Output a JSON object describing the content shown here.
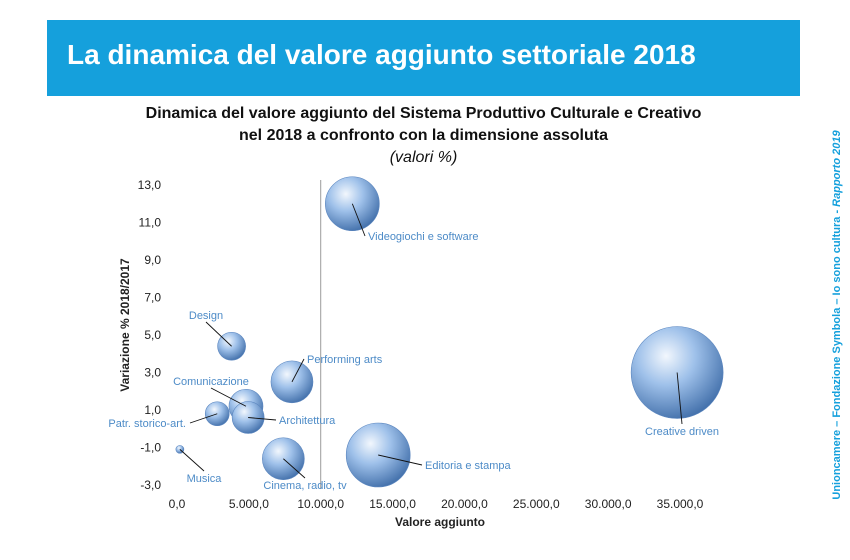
{
  "header": {
    "title": "La dinamica del valore aggiunto settoriale 2018"
  },
  "side_note": {
    "text_a": "Unioncamere – Fondazione Symbola – Io sono cultura - ",
    "text_b": "Rapporto 2019"
  },
  "colors": {
    "banner": "#15a0dc",
    "bubble_light": "#e6f0fb",
    "bubble_mid": "#8cb4e3",
    "bubble_dark": "#3f6fa8",
    "label": "#4d8bc7"
  },
  "chart_data": {
    "type": "bubble",
    "title_line1": "Dinamica del valore aggiunto del Sistema Produttivo Culturale e Creativo",
    "title_line2": "nel 2018 a confronto con la dimensione assoluta",
    "subtitle": "(valori %)",
    "xlabel": "Valore aggiunto",
    "ylabel": "Variazione % 2018/2017",
    "xlim": [
      0,
      35000
    ],
    "ylim": [
      -3,
      13
    ],
    "x_ticks": [
      "0,0",
      "5.000,0",
      "10.000,0",
      "15.000,0",
      "20.000,0",
      "25.000,0",
      "30.000,0",
      "35.000,0"
    ],
    "x_tick_values": [
      0,
      5000,
      10000,
      15000,
      20000,
      25000,
      30000,
      35000
    ],
    "y_ticks": [
      "13,0",
      "11,0",
      "9,0",
      "7,0",
      "5,0",
      "3,0",
      "1,0",
      "-1,0",
      "-3,0"
    ],
    "y_tick_values": [
      13,
      11,
      9,
      7,
      5,
      3,
      1,
      -1,
      -3
    ],
    "grid": false,
    "points": [
      {
        "name": "Videogiochi e software",
        "x": 12200,
        "y": 12.0
      },
      {
        "name": "Design",
        "x": 3800,
        "y": 4.4
      },
      {
        "name": "Performing arts",
        "x": 8000,
        "y": 2.5
      },
      {
        "name": "Comunicazione",
        "x": 4800,
        "y": 1.2
      },
      {
        "name": "Architettura",
        "x": 4950,
        "y": 0.6
      },
      {
        "name": "Patr. storico-art.",
        "x": 2800,
        "y": 0.8
      },
      {
        "name": "Musica",
        "x": 200,
        "y": -1.1
      },
      {
        "name": "Cinema, radio, tv",
        "x": 7400,
        "y": -1.6
      },
      {
        "name": "Editoria e stampa",
        "x": 14000,
        "y": -1.4
      },
      {
        "name": "Creative driven",
        "x": 34800,
        "y": 3.0
      }
    ]
  }
}
